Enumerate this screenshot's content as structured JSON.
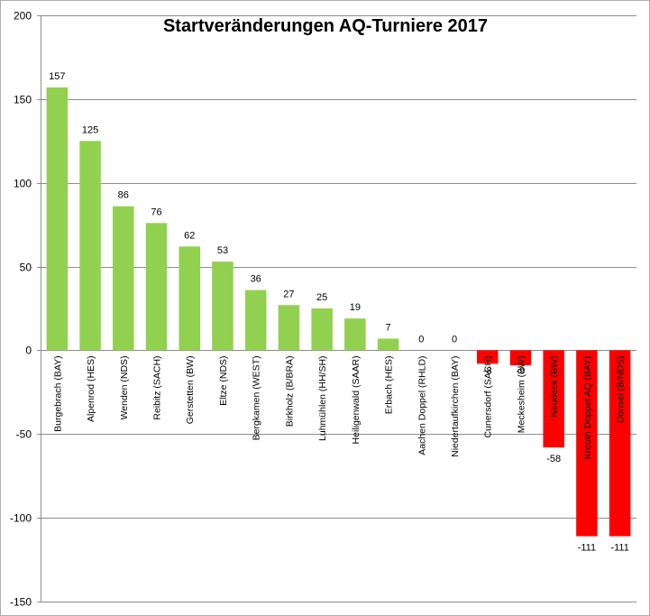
{
  "chart_data": {
    "type": "bar",
    "title": "Startveränderungen AQ-Turniere 2017",
    "xlabel": "",
    "ylabel": "",
    "ylim": [
      -150,
      200
    ],
    "yticks": [
      200,
      150,
      100,
      50,
      0,
      -50,
      -100,
      -150
    ],
    "ytick_labels": [
      "200",
      "150",
      "100",
      "50",
      "0",
      "-50",
      "-100",
      "-150"
    ],
    "grid": true,
    "legend": "none",
    "categories": [
      "Burgebrach (BAY)",
      "Alpenrod (HES)",
      "Wenden (NDS)",
      "Reibitz (SACH)",
      "Gerstetten (BW)",
      "Eltze (NDS)",
      "Bergkamen (WEST)",
      "Birkholz (B/BRA)",
      "Luhmühlen (HH/SH)",
      "Heiligenwald (SAAR)",
      "Erbach (HES)",
      "Aachen Doppel (RHLD)",
      "Niedertaufkirchen (BAY)",
      "Cunersdorf (SACH)",
      "Meckesheim (BW)",
      "Neudeck (BW)",
      "Kreuth Doppel AQ (BAY)",
      "Dönsel (B/NDS)"
    ],
    "values": [
      157,
      125,
      86,
      76,
      62,
      53,
      36,
      27,
      25,
      19,
      7,
      0,
      0,
      -8,
      -9,
      -58,
      -111,
      -111
    ],
    "data_labels": [
      "157",
      "125",
      "86",
      "76",
      "62",
      "53",
      "36",
      "27",
      "25",
      "19",
      "7",
      "0",
      "0",
      "-8",
      "-9",
      "-58",
      "-111",
      "-111"
    ],
    "colors": {
      "positive": "#92d050",
      "negative": "#ff0000"
    }
  }
}
